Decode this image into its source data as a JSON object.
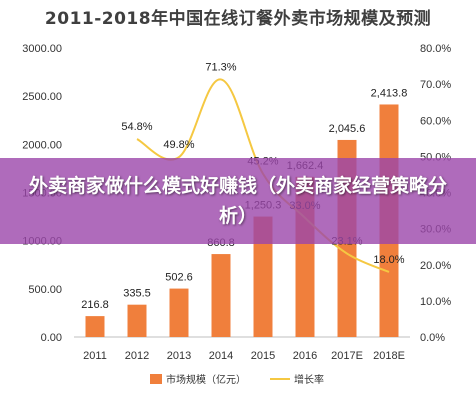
{
  "chart_data": {
    "type": "bar",
    "title": "2011-2018年中国在线订餐外卖市场规模及预测",
    "categories": [
      "2011",
      "2012",
      "2013",
      "2014",
      "2015",
      "2016",
      "2017E",
      "2018E"
    ],
    "series": [
      {
        "name": "市场规模（亿元）",
        "type": "bar",
        "axis": "left",
        "values": [
          216.8,
          335.5,
          502.6,
          860.8,
          1250.3,
          1662.4,
          2045.6,
          2413.8
        ],
        "labels": [
          "216.8",
          "335.5",
          "502.6",
          "860.8",
          "1,250.3",
          "1,662.4",
          "2,045.6",
          "2,413.8"
        ]
      },
      {
        "name": "增长率",
        "type": "line",
        "axis": "right",
        "values": [
          null,
          54.8,
          49.8,
          71.3,
          45.2,
          33.0,
          23.1,
          18.0
        ],
        "labels": [
          "",
          "54.8%",
          "49.8%",
          "71.3%",
          "45.2%",
          "33.0%",
          "23.1%",
          "18.0%"
        ]
      }
    ],
    "ylim_left": [
      0,
      3000
    ],
    "yticks_left": [
      "0.00",
      "500.00",
      "1000.00",
      "1500.00",
      "2000.00",
      "2500.00",
      "3000.00"
    ],
    "ylim_right": [
      0,
      80
    ],
    "yticks_right": [
      "0.0%",
      "10.0%",
      "20.0%",
      "30.0%",
      "40.0%",
      "50.0%",
      "60.0%",
      "70.0%",
      "80.0%"
    ],
    "legend_position": "bottom",
    "grid": false,
    "colors": {
      "bar": "#f07f3c",
      "line": "#f5c842"
    }
  },
  "overlay": {
    "banner_text": "外卖商家做什么模式好赚钱（外卖商家经营策略分析）",
    "banner_color": "#9b46aa"
  }
}
